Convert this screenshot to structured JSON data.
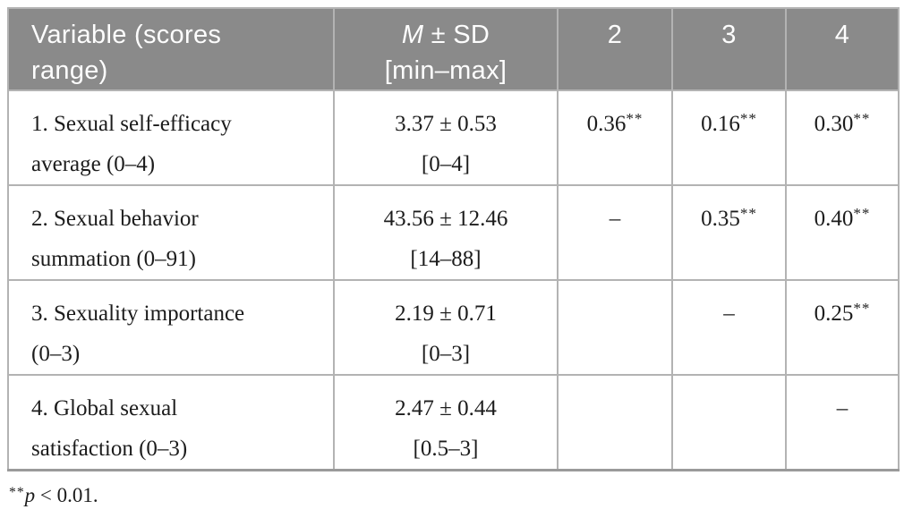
{
  "colors": {
    "header_bg": "#8a8a8a",
    "header_text": "#fdfdfd",
    "body_text": "#1c1c1c",
    "grid_border": "#b3b3b3",
    "outer_border": "#9a9a9a",
    "page_bg": "#ffffff"
  },
  "table": {
    "header": {
      "variable_line1": "Variable (scores",
      "variable_line2": "range)",
      "msd_m": "M",
      "msd_rest": " ± SD",
      "msd_line2": "[min–max]",
      "col2": "2",
      "col3": "3",
      "col4": "4"
    },
    "rows": [
      {
        "variable_line1": "1. Sexual self-efficacy",
        "variable_line2": "average (0–4)",
        "msd": "3.37 ± 0.53",
        "range": "[0–4]",
        "r2": {
          "value": "0.36",
          "sig": "**"
        },
        "r3": {
          "value": "0.16",
          "sig": "**"
        },
        "r4": {
          "value": "0.30",
          "sig": "**"
        }
      },
      {
        "variable_line1": "2. Sexual behavior",
        "variable_line2": "summation (0–91)",
        "msd": "43.56 ± 12.46",
        "range": "[14–88]",
        "r2": {
          "value": "–",
          "sig": ""
        },
        "r3": {
          "value": "0.35",
          "sig": "**"
        },
        "r4": {
          "value": "0.40",
          "sig": "**"
        }
      },
      {
        "variable_line1": "3. Sexuality importance",
        "variable_line2": "(0–3)",
        "msd": "2.19 ± 0.71",
        "range": "[0–3]",
        "r3": {
          "value": "–",
          "sig": ""
        },
        "r4": {
          "value": "0.25",
          "sig": "**"
        }
      },
      {
        "variable_line1": "4. Global sexual",
        "variable_line2": "satisfaction (0–3)",
        "msd": "2.47 ± 0.44",
        "range": "[0.5–3]",
        "r4": {
          "value": "–",
          "sig": ""
        }
      }
    ]
  },
  "footnote": {
    "marker": "**",
    "symbol": "p",
    "text": " < 0.01."
  }
}
